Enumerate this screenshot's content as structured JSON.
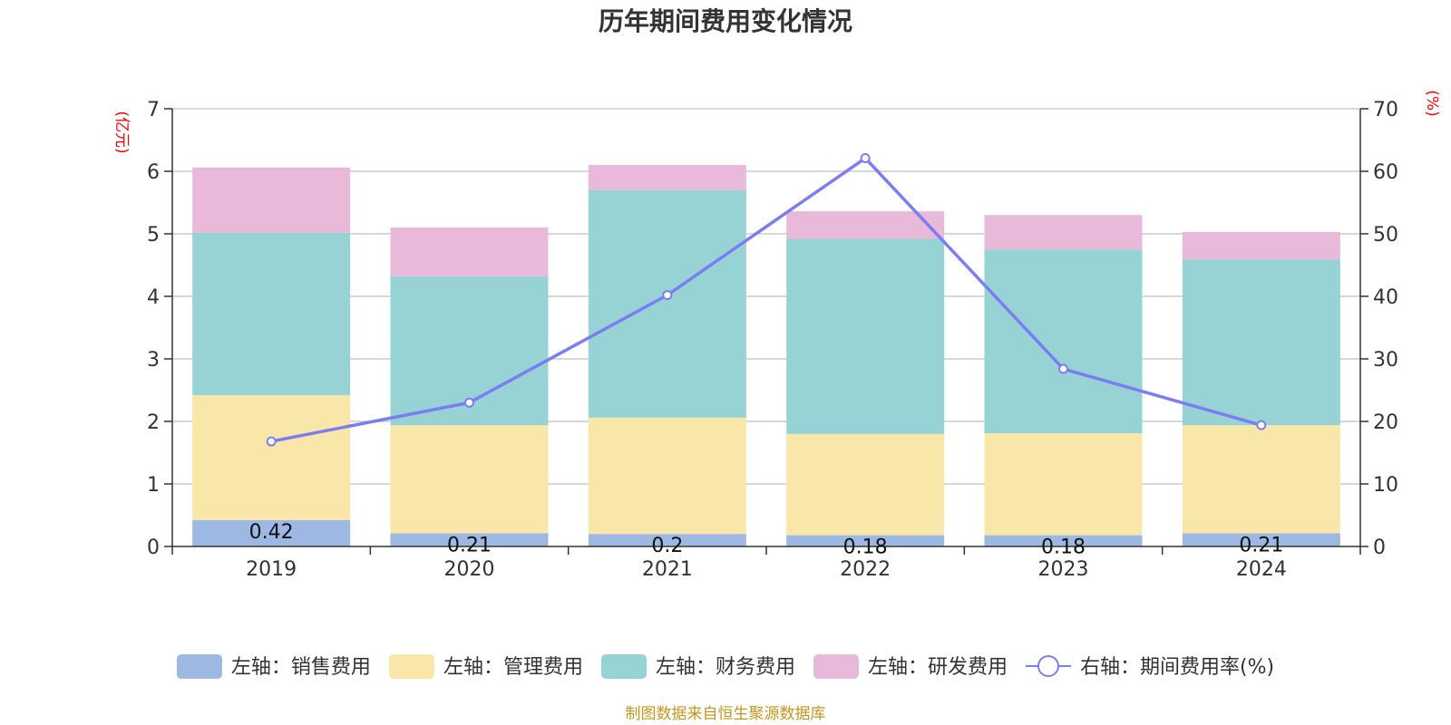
{
  "chart_data": {
    "type": "bar",
    "title": "历年期间费用变化情况",
    "categories": [
      "2019",
      "2020",
      "2021",
      "2022",
      "2023",
      "2024"
    ],
    "y_left": {
      "unit": "(亿元)",
      "range": [
        0,
        7
      ],
      "ticks": [
        0,
        1,
        2,
        3,
        4,
        5,
        6,
        7
      ]
    },
    "y_right": {
      "unit": "(%)",
      "range": [
        0,
        70
      ],
      "ticks": [
        0,
        10,
        20,
        30,
        40,
        50,
        60,
        70
      ]
    },
    "stacked": true,
    "grid": true,
    "legend_position": "bottom",
    "series": [
      {
        "name": "左轴：销售费用",
        "axis": "left",
        "kind": "bar",
        "color": "#9cb8e3",
        "values": [
          0.42,
          0.21,
          0.2,
          0.18,
          0.18,
          0.21
        ],
        "labels": [
          "0.42",
          "0.21",
          "0.2",
          "0.18",
          "0.18",
          "0.21"
        ]
      },
      {
        "name": "左轴：管理费用",
        "axis": "left",
        "kind": "bar",
        "color": "#f8e7a9",
        "values": [
          2.0,
          1.73,
          1.86,
          1.62,
          1.63,
          1.73
        ]
      },
      {
        "name": "左轴：财务费用",
        "axis": "left",
        "kind": "bar",
        "color": "#97d3d4",
        "values": [
          2.6,
          2.38,
          3.64,
          3.12,
          2.94,
          2.65
        ]
      },
      {
        "name": "左轴：研发费用",
        "axis": "left",
        "kind": "bar",
        "color": "#e8b9d9",
        "values": [
          1.04,
          0.78,
          0.4,
          0.44,
          0.55,
          0.44
        ]
      },
      {
        "name": "右轴：期间费用率(%)",
        "axis": "right",
        "kind": "line",
        "color": "#7a7ef2",
        "values": [
          16.8,
          23,
          40.2,
          62.1,
          28.4,
          19.4
        ]
      }
    ],
    "source": "制图数据来自恒生聚源数据库"
  }
}
